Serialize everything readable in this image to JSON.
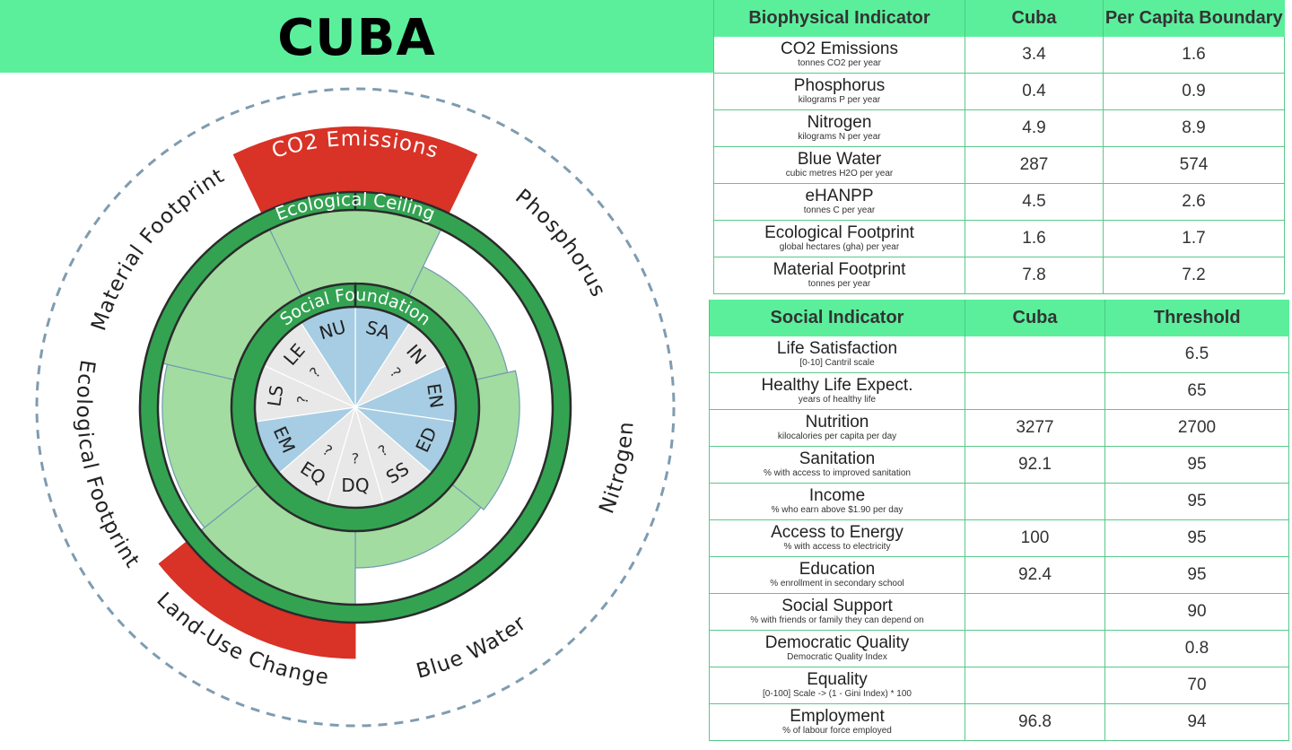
{
  "page": {
    "title": "CUBA"
  },
  "chart_data": {
    "type": "doughnut",
    "ceiling_label": "Ecological Ceiling",
    "foundation_label": "Social Foundation",
    "biophysical_wedges": [
      {
        "label": "CO2 Emissions",
        "ratio": 2.13,
        "exceeded": true
      },
      {
        "label": "Phosphorus",
        "ratio": 0.44,
        "exceeded": false
      },
      {
        "label": "Nitrogen",
        "ratio": 0.55,
        "exceeded": false
      },
      {
        "label": "Blue Water",
        "ratio": 0.5,
        "exceeded": false
      },
      {
        "label": "Land-Use Change",
        "ratio": 1.73,
        "exceeded": true
      },
      {
        "label": "Ecological Footprint",
        "ratio": 0.94,
        "exceeded": false
      },
      {
        "label": "Material Footprint",
        "ratio": 1.08,
        "exceeded": true
      }
    ],
    "social_wedges": [
      {
        "label": "SA",
        "known": true
      },
      {
        "label": "IN",
        "known": false
      },
      {
        "label": "EN",
        "known": true
      },
      {
        "label": "ED",
        "known": true
      },
      {
        "label": "SS",
        "known": false
      },
      {
        "label": "DQ",
        "known": false
      },
      {
        "label": "EQ",
        "known": false
      },
      {
        "label": "EM",
        "known": true
      },
      {
        "label": "LS",
        "known": false
      },
      {
        "label": "LE",
        "known": false
      },
      {
        "label": "NU",
        "known": true
      }
    ],
    "unknown_mark": "?",
    "colors": {
      "exceeded": "#d93227",
      "within": "#a3dca0",
      "boundary_ring": "#33a352",
      "known_social": "#a6cde3",
      "unknown_social": "#e8e8e8",
      "outline": "#2b2b2b",
      "dashed_circle": "#7f9cb0"
    }
  },
  "biophysical_table": {
    "headers": [
      "Biophysical Indicator",
      "Cuba",
      "Per Capita Boundary"
    ],
    "rows": [
      {
        "name": "CO2 Emissions",
        "unit": "tonnes CO2 per year",
        "value": "3.4",
        "boundary": "1.6"
      },
      {
        "name": "Phosphorus",
        "unit": "kilograms P per year",
        "value": "0.4",
        "boundary": "0.9"
      },
      {
        "name": "Nitrogen",
        "unit": "kilograms N per year",
        "value": "4.9",
        "boundary": "8.9"
      },
      {
        "name": "Blue Water",
        "unit": "cubic metres H2O per year",
        "value": "287",
        "boundary": "574"
      },
      {
        "name": "eHANPP",
        "unit": "tonnes C per year",
        "value": "4.5",
        "boundary": "2.6"
      },
      {
        "name": "Ecological Footprint",
        "unit": "global hectares (gha) per year",
        "value": "1.6",
        "boundary": "1.7"
      },
      {
        "name": "Material Footprint",
        "unit": "tonnes per year",
        "value": "7.8",
        "boundary": "7.2"
      }
    ]
  },
  "social_table": {
    "headers": [
      "Social Indicator",
      "Cuba",
      "Threshold"
    ],
    "rows": [
      {
        "name": "Life Satisfaction",
        "unit": "[0-10] Cantril scale",
        "value": "",
        "threshold": "6.5"
      },
      {
        "name": "Healthy Life Expect.",
        "unit": "years of healthy life",
        "value": "",
        "threshold": "65"
      },
      {
        "name": "Nutrition",
        "unit": "kilocalories per capita per day",
        "value": "3277",
        "threshold": "2700"
      },
      {
        "name": "Sanitation",
        "unit": "% with access to improved sanitation",
        "value": "92.1",
        "threshold": "95"
      },
      {
        "name": "Income",
        "unit": "% who earn above $1.90 per day",
        "value": "",
        "threshold": "95"
      },
      {
        "name": "Access to Energy",
        "unit": "% with access to electricity",
        "value": "100",
        "threshold": "95"
      },
      {
        "name": "Education",
        "unit": "% enrollment in secondary school",
        "value": "92.4",
        "threshold": "95"
      },
      {
        "name": "Social Support",
        "unit": "% with friends or family they can depend on",
        "value": "",
        "threshold": "90"
      },
      {
        "name": "Democratic Quality",
        "unit": "Democratic Quality Index",
        "value": "",
        "threshold": "0.8"
      },
      {
        "name": "Equality",
        "unit": "[0-100] Scale -> (1 - Gini Index) * 100",
        "value": "",
        "threshold": "70"
      },
      {
        "name": "Employment",
        "unit": "% of labour force employed",
        "value": "96.8",
        "threshold": "94"
      }
    ]
  }
}
